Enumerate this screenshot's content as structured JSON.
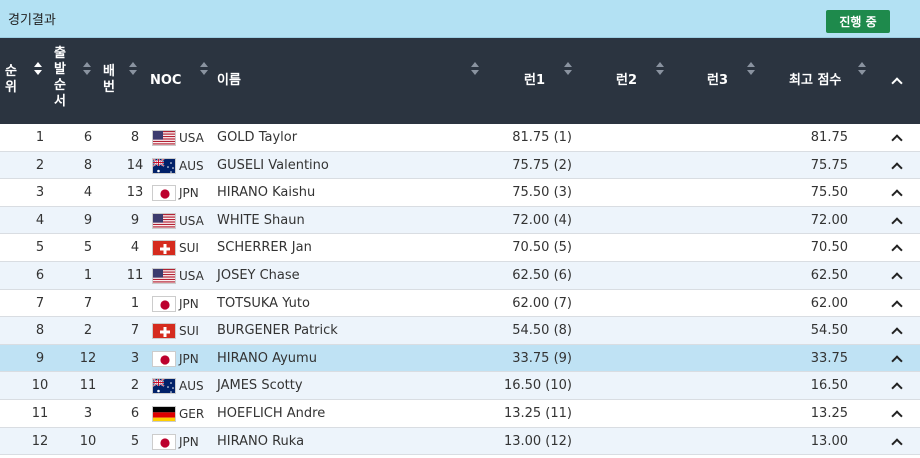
{
  "header": {
    "title": "경기결과",
    "status": "진행 중"
  },
  "columns": {
    "rank": "순\n위",
    "start_order": "출\n발\n순\n서",
    "bib": "배\n번",
    "noc": "NOC",
    "name": "이름",
    "run1": "런1",
    "run2": "런2",
    "run3": "런3",
    "best": "최고 점수"
  },
  "rows": [
    {
      "rank": "1",
      "start": "6",
      "bib": "8",
      "flag": "us",
      "noc": "USA",
      "name": "GOLD Taylor",
      "run1": "81.75 (1)",
      "run2": "",
      "run3": "",
      "best": "81.75"
    },
    {
      "rank": "2",
      "start": "8",
      "bib": "14",
      "flag": "au",
      "noc": "AUS",
      "name": "GUSELI Valentino",
      "run1": "75.75 (2)",
      "run2": "",
      "run3": "",
      "best": "75.75"
    },
    {
      "rank": "3",
      "start": "4",
      "bib": "13",
      "flag": "jp",
      "noc": "JPN",
      "name": "HIRANO Kaishu",
      "run1": "75.50 (3)",
      "run2": "",
      "run3": "",
      "best": "75.50"
    },
    {
      "rank": "4",
      "start": "9",
      "bib": "9",
      "flag": "us",
      "noc": "USA",
      "name": "WHITE Shaun",
      "run1": "72.00 (4)",
      "run2": "",
      "run3": "",
      "best": "72.00"
    },
    {
      "rank": "5",
      "start": "5",
      "bib": "4",
      "flag": "ch",
      "noc": "SUI",
      "name": "SCHERRER Jan",
      "run1": "70.50 (5)",
      "run2": "",
      "run3": "",
      "best": "70.50"
    },
    {
      "rank": "6",
      "start": "1",
      "bib": "11",
      "flag": "us",
      "noc": "USA",
      "name": "JOSEY Chase",
      "run1": "62.50 (6)",
      "run2": "",
      "run3": "",
      "best": "62.50"
    },
    {
      "rank": "7",
      "start": "7",
      "bib": "1",
      "flag": "jp",
      "noc": "JPN",
      "name": "TOTSUKA Yuto",
      "run1": "62.00 (7)",
      "run2": "",
      "run3": "",
      "best": "62.00"
    },
    {
      "rank": "8",
      "start": "2",
      "bib": "7",
      "flag": "ch",
      "noc": "SUI",
      "name": "BURGENER Patrick",
      "run1": "54.50 (8)",
      "run2": "",
      "run3": "",
      "best": "54.50"
    },
    {
      "rank": "9",
      "start": "12",
      "bib": "3",
      "flag": "jp",
      "noc": "JPN",
      "name": "HIRANO Ayumu",
      "run1": "33.75 (9)",
      "run2": "",
      "run3": "",
      "best": "33.75",
      "highlight": true
    },
    {
      "rank": "10",
      "start": "11",
      "bib": "2",
      "flag": "au",
      "noc": "AUS",
      "name": "JAMES Scotty",
      "run1": "16.50 (10)",
      "run2": "",
      "run3": "",
      "best": "16.50"
    },
    {
      "rank": "11",
      "start": "3",
      "bib": "6",
      "flag": "de",
      "noc": "GER",
      "name": "HOEFLICH Andre",
      "run1": "13.25 (11)",
      "run2": "",
      "run3": "",
      "best": "13.25"
    },
    {
      "rank": "12",
      "start": "10",
      "bib": "5",
      "flag": "jp",
      "noc": "JPN",
      "name": "HIRANO Ruka",
      "run1": "13.00 (12)",
      "run2": "",
      "run3": "",
      "best": "13.00"
    }
  ],
  "colors": {
    "header_bg": "#2b3440",
    "title_bg": "#b3e1f3",
    "status_bg": "#1e8a4c",
    "row_alt": "#edf4fb",
    "row_highlight": "#bfe2f4"
  }
}
